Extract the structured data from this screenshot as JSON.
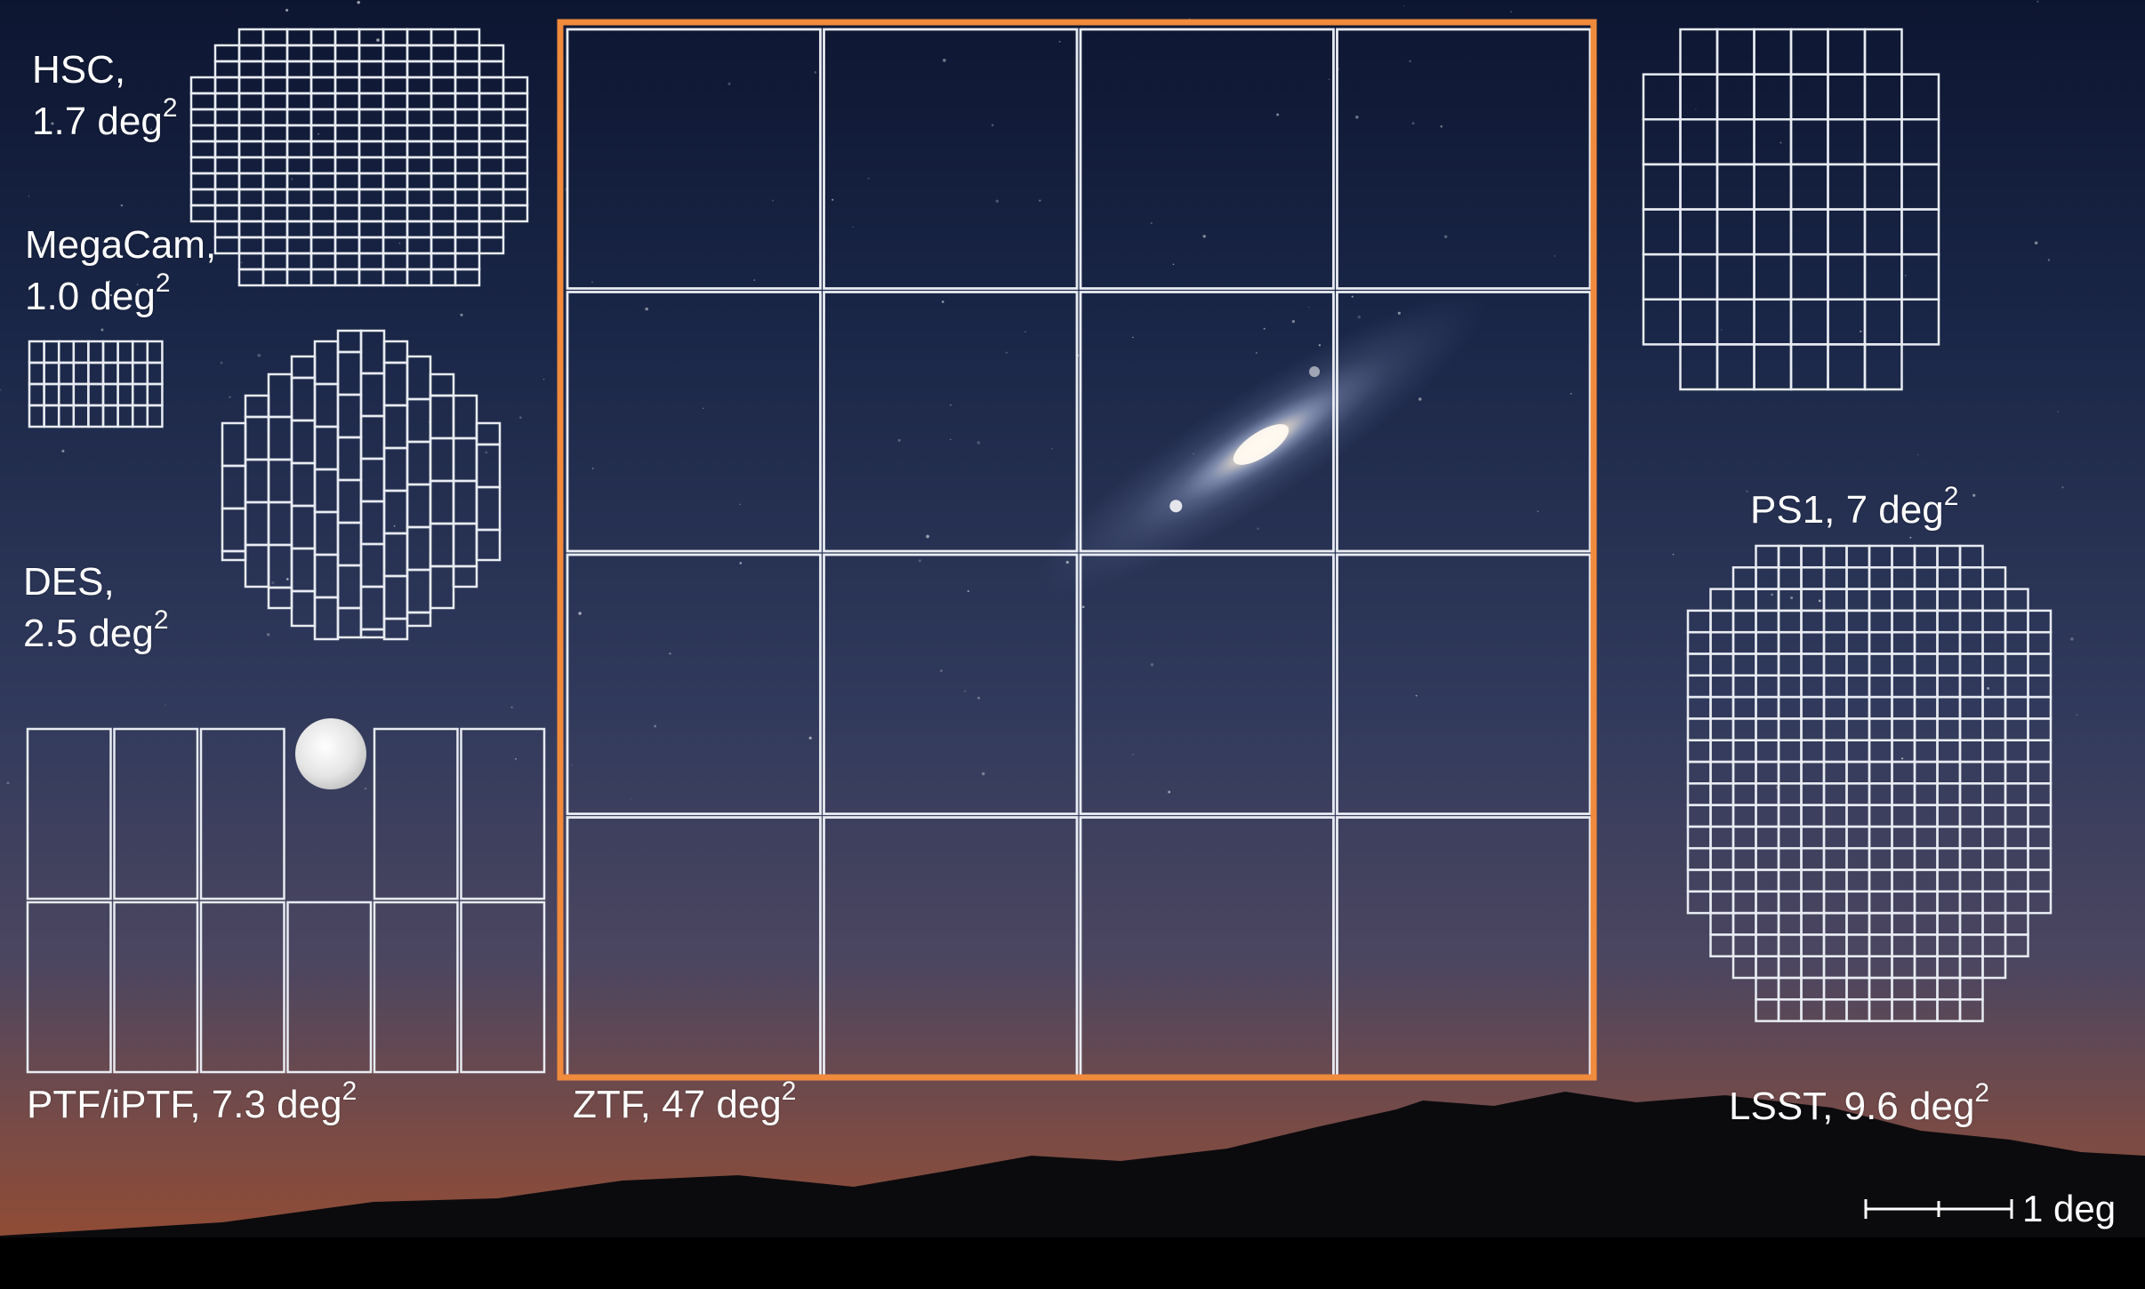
{
  "instruments": [
    {
      "id": "hsc",
      "name": "HSC,",
      "area": "1.7 deg",
      "unit_exp": "2"
    },
    {
      "id": "megacam",
      "name": "MegaCam,",
      "area": "1.0 deg",
      "unit_exp": "2"
    },
    {
      "id": "des",
      "name": "DES,",
      "area": "2.5 deg",
      "unit_exp": "2"
    },
    {
      "id": "ptf",
      "name": "PTF/iPTF, 7.3 deg",
      "unit_exp": "2"
    },
    {
      "id": "ztf",
      "name": "ZTF, 47 deg",
      "unit_exp": "2"
    },
    {
      "id": "ps1",
      "name": "PS1, 7 deg",
      "unit_exp": "2"
    },
    {
      "id": "lsst",
      "name": "LSST, 9.6 deg",
      "unit_exp": "2"
    }
  ],
  "scale_bar": {
    "label": "1 deg"
  },
  "colors": {
    "sky_top": "#0e1934",
    "sky_mid": "#2b3556",
    "sky_low": "#5a4a5a",
    "horizon": "#8a4a35",
    "mountains": "#0b0b0e",
    "grid_lines": "#e8ecf2",
    "ztf_highlight": "#f08a3c"
  }
}
